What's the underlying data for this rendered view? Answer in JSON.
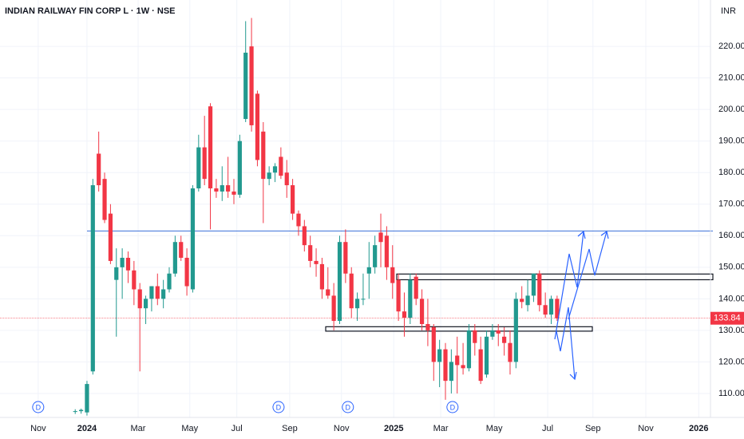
{
  "chart_data": {
    "type": "candlestick",
    "title": "INDIAN RAILWAY FIN CORP L · 1W · NSE",
    "currency": "INR",
    "up_color": "#22998f",
    "down_color": "#f23645",
    "x": [
      -2,
      -1,
      0,
      1,
      2,
      3,
      4,
      5,
      6,
      7,
      8,
      9,
      10,
      11,
      12,
      13,
      14,
      15,
      16,
      17,
      18,
      19,
      20,
      21,
      22,
      23,
      24,
      25,
      26,
      27,
      28,
      29,
      30,
      31,
      32,
      33,
      34,
      35,
      36,
      37,
      38,
      39,
      40,
      41,
      42,
      43,
      44,
      45,
      46,
      47,
      48,
      49,
      50,
      51,
      52,
      53,
      54,
      55,
      56,
      57,
      58,
      59,
      60,
      61,
      62,
      63,
      64,
      65,
      66,
      67,
      68,
      69,
      70,
      71,
      72,
      73,
      74,
      75,
      76,
      77,
      78,
      79,
      80
    ],
    "open": [
      104.2,
      104.4,
      104,
      117,
      186,
      178,
      167,
      146,
      150,
      153,
      149,
      143,
      137,
      140,
      144,
      140,
      143,
      148,
      158,
      153,
      143,
      175,
      188,
      201,
      175,
      174,
      176,
      174,
      173,
      197,
      220,
      205,
      193,
      178,
      180,
      185,
      180,
      176,
      167,
      163,
      157,
      152,
      151,
      143,
      141,
      133,
      158,
      148,
      137,
      140,
      148,
      150,
      161,
      160,
      150,
      146,
      136,
      134,
      147,
      140,
      132,
      131,
      120,
      124,
      114,
      122,
      119,
      118,
      130,
      124,
      116,
      128,
      130,
      128,
      126,
      120,
      140,
      138,
      141,
      148,
      138,
      135,
      140
    ],
    "high": [
      105,
      105.2,
      114,
      178,
      193,
      180,
      170,
      156,
      156,
      155,
      152,
      145,
      141,
      144,
      148,
      146,
      150,
      160,
      160,
      156,
      176,
      192,
      198,
      202,
      178,
      182,
      185,
      178,
      192,
      228,
      229,
      206,
      196,
      182,
      183,
      188,
      184,
      178,
      168,
      165,
      160,
      156,
      153,
      150,
      145,
      160,
      162,
      150,
      142,
      148,
      158,
      160,
      167,
      163,
      157,
      148,
      142,
      148,
      148,
      143,
      140,
      132,
      127,
      126,
      124,
      128,
      126,
      132,
      132,
      128,
      130,
      132,
      132,
      131,
      130,
      142,
      144,
      146,
      148,
      149,
      142,
      141,
      141
    ],
    "low": [
      103.5,
      103.6,
      103,
      116,
      174,
      164,
      151,
      128,
      140,
      145,
      138,
      117,
      132,
      136,
      138,
      137,
      142,
      147,
      152,
      141,
      142,
      174,
      176,
      162,
      172,
      171,
      172,
      170,
      172,
      196,
      193,
      182,
      164,
      176,
      177,
      178,
      172,
      165,
      160,
      155,
      150,
      147,
      140,
      140,
      130,
      132,
      145,
      134,
      133,
      138,
      140,
      148,
      150,
      146,
      140,
      133,
      128,
      132,
      138,
      130,
      125,
      114,
      112,
      108,
      110,
      110,
      116,
      117,
      122,
      113,
      115,
      127,
      125,
      122,
      116,
      118,
      137,
      136,
      139,
      136,
      134,
      132,
      133
    ],
    "close": [
      104.4,
      104.8,
      113,
      176,
      176,
      165,
      152,
      150,
      153,
      149,
      143,
      137,
      140,
      144,
      140,
      143,
      148,
      158,
      153,
      144,
      175,
      188,
      178,
      175,
      174,
      176,
      174,
      173,
      190,
      218,
      195,
      184,
      178,
      180,
      182,
      179,
      176,
      167,
      163,
      157,
      152,
      151,
      143,
      141,
      133,
      158,
      148,
      137,
      140,
      140,
      150,
      157,
      158,
      150,
      145,
      136,
      134,
      146,
      140,
      132,
      130,
      120,
      124,
      114,
      120,
      119,
      118,
      130,
      126,
      114,
      128,
      130,
      129,
      126,
      120,
      140,
      139,
      141,
      148,
      138,
      135,
      140,
      133.84
    ],
    "last_price": 133.84,
    "hlines": [
      161.5
    ],
    "zones": [
      [
        146.3,
        147.6
      ],
      [
        130,
        130.9
      ]
    ],
    "events": [
      {
        "x": -8.3,
        "label": "D"
      },
      {
        "x": 32.6,
        "label": "D"
      },
      {
        "x": 44.4,
        "label": "D"
      },
      {
        "x": 62.2,
        "label": "D"
      }
    ],
    "xlim": [
      -14.8,
      106.1
    ],
    "ylim": [
      102.4,
      234.7
    ],
    "xticks": [
      {
        "value": -8.3,
        "label": "Nov"
      },
      {
        "value": 0,
        "label": "2024"
      },
      {
        "value": 8.7,
        "label": "Mar"
      },
      {
        "value": 17.5,
        "label": "May"
      },
      {
        "value": 25.5,
        "label": "Jul"
      },
      {
        "value": 34.5,
        "label": "Sep"
      },
      {
        "value": 43.3,
        "label": "Nov"
      },
      {
        "value": 52.2,
        "label": "2025"
      },
      {
        "value": 60.2,
        "label": "Mar"
      },
      {
        "value": 69.3,
        "label": "May"
      },
      {
        "value": 78.4,
        "label": "Jul"
      },
      {
        "value": 86.1,
        "label": "Sep"
      },
      {
        "value": 95.1,
        "label": "Nov"
      },
      {
        "value": 104.1,
        "label": "2026"
      }
    ],
    "yticks": [
      {
        "value": 110,
        "label": "110.00"
      },
      {
        "value": 120,
        "label": "120.00"
      },
      {
        "value": 130,
        "label": "130.00"
      },
      {
        "value": 140,
        "label": "140.00"
      },
      {
        "value": 150,
        "label": "150.00"
      },
      {
        "value": 160,
        "label": "160.00"
      },
      {
        "value": 170,
        "label": "170.00"
      },
      {
        "value": 180,
        "label": "180.00"
      },
      {
        "value": 190,
        "label": "190.00"
      },
      {
        "value": 200,
        "label": "200.00"
      },
      {
        "value": 210,
        "label": "210.00"
      },
      {
        "value": 220,
        "label": "220.00"
      }
    ],
    "grid": true
  }
}
